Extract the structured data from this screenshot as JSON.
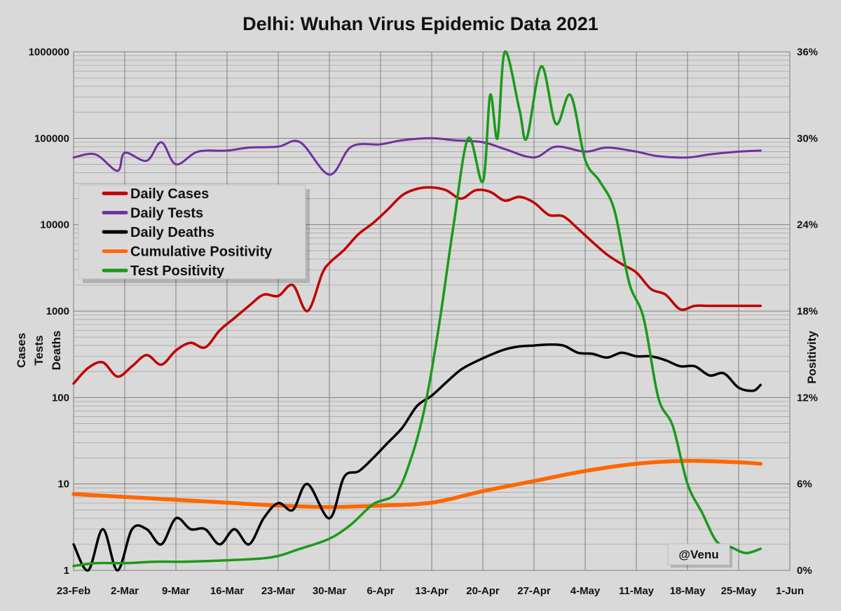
{
  "chart_data": {
    "type": "line",
    "title": "Delhi: Wuhan Virus Epidemic Data 2021",
    "y_left_labels": [
      "Cases",
      "Tests",
      "Deaths"
    ],
    "y_right_label": "Positivity",
    "y_left_scale": "log",
    "y_left_range": [
      1,
      1000000
    ],
    "y_left_ticks": [
      "1",
      "10",
      "100",
      "1000",
      "10000",
      "100000",
      "1000000"
    ],
    "y_right_range": [
      0,
      36
    ],
    "y_right_ticks": [
      "0%",
      "6%",
      "12%",
      "18%",
      "24%",
      "30%",
      "36%"
    ],
    "x_range": [
      "2021-02-23",
      "2021-06-01"
    ],
    "x_ticks": [
      "23-Feb",
      "2-Mar",
      "9-Mar",
      "16-Mar",
      "23-Mar",
      "30-Mar",
      "6-Apr",
      "13-Apr",
      "20-Apr",
      "27-Apr",
      "4-May",
      "11-May",
      "18-May",
      "25-May",
      "1-Jun"
    ],
    "grid": true,
    "legend_position": "upper-left",
    "credit": "@Venu",
    "series": [
      {
        "name": "Daily Cases",
        "color": "#c00000",
        "axis": "left",
        "x": [
          "2021-02-23",
          "2021-02-25",
          "2021-02-27",
          "2021-03-01",
          "2021-03-03",
          "2021-03-05",
          "2021-03-07",
          "2021-03-09",
          "2021-03-11",
          "2021-03-13",
          "2021-03-15",
          "2021-03-17",
          "2021-03-19",
          "2021-03-21",
          "2021-03-23",
          "2021-03-25",
          "2021-03-27",
          "2021-03-29",
          "2021-03-30",
          "2021-04-01",
          "2021-04-03",
          "2021-04-05",
          "2021-04-07",
          "2021-04-09",
          "2021-04-11",
          "2021-04-13",
          "2021-04-15",
          "2021-04-17",
          "2021-04-19",
          "2021-04-21",
          "2021-04-23",
          "2021-04-25",
          "2021-04-27",
          "2021-04-29",
          "2021-05-01",
          "2021-05-03",
          "2021-05-05",
          "2021-05-07",
          "2021-05-09",
          "2021-05-11",
          "2021-05-13",
          "2021-05-15",
          "2021-05-17",
          "2021-05-19",
          "2021-05-21",
          "2021-05-23",
          "2021-05-25",
          "2021-05-27",
          "2021-05-28"
        ],
        "values": [
          145,
          220,
          255,
          175,
          230,
          310,
          240,
          350,
          430,
          380,
          600,
          830,
          1150,
          1550,
          1500,
          2000,
          1000,
          2700,
          3600,
          5100,
          7800,
          10500,
          15000,
          22000,
          26000,
          27000,
          25000,
          20000,
          25000,
          24000,
          19000,
          21000,
          18000,
          13000,
          12500,
          9000,
          6300,
          4500,
          3500,
          2800,
          1800,
          1550,
          1050,
          1150,
          1150,
          1150,
          1150,
          1150,
          1150
        ]
      },
      {
        "name": "Daily Tests",
        "color": "#7030a0",
        "axis": "left",
        "x": [
          "2021-02-23",
          "2021-02-26",
          "2021-03-01",
          "2021-03-02",
          "2021-03-05",
          "2021-03-07",
          "2021-03-09",
          "2021-03-12",
          "2021-03-16",
          "2021-03-19",
          "2021-03-23",
          "2021-03-26",
          "2021-03-30",
          "2021-04-02",
          "2021-04-06",
          "2021-04-09",
          "2021-04-13",
          "2021-04-16",
          "2021-04-20",
          "2021-04-23",
          "2021-04-27",
          "2021-04-30",
          "2021-05-04",
          "2021-05-07",
          "2021-05-11",
          "2021-05-14",
          "2021-05-18",
          "2021-05-21",
          "2021-05-25",
          "2021-05-28"
        ],
        "values": [
          60000,
          65000,
          42000,
          68000,
          55000,
          90000,
          50000,
          70000,
          72000,
          78000,
          80000,
          90000,
          38000,
          80000,
          85000,
          95000,
          100000,
          95000,
          90000,
          75000,
          60000,
          80000,
          70000,
          78000,
          70000,
          62000,
          60000,
          65000,
          70000,
          72000
        ]
      },
      {
        "name": "Daily Deaths",
        "color": "#000000",
        "axis": "left",
        "x": [
          "2021-02-23",
          "2021-02-25",
          "2021-02-27",
          "2021-03-01",
          "2021-03-03",
          "2021-03-05",
          "2021-03-07",
          "2021-03-09",
          "2021-03-11",
          "2021-03-13",
          "2021-03-15",
          "2021-03-17",
          "2021-03-19",
          "2021-03-21",
          "2021-03-23",
          "2021-03-25",
          "2021-03-27",
          "2021-03-30",
          "2021-04-01",
          "2021-04-03",
          "2021-04-05",
          "2021-04-07",
          "2021-04-09",
          "2021-04-11",
          "2021-04-13",
          "2021-04-15",
          "2021-04-17",
          "2021-04-19",
          "2021-04-21",
          "2021-04-23",
          "2021-04-25",
          "2021-04-27",
          "2021-04-29",
          "2021-05-01",
          "2021-05-03",
          "2021-05-05",
          "2021-05-07",
          "2021-05-09",
          "2021-05-11",
          "2021-05-13",
          "2021-05-15",
          "2021-05-17",
          "2021-05-19",
          "2021-05-21",
          "2021-05-23",
          "2021-05-25",
          "2021-05-27",
          "2021-05-28"
        ],
        "values": [
          2,
          1,
          3,
          1,
          3,
          3,
          2,
          4,
          3,
          3,
          2,
          3,
          2,
          4,
          6,
          5,
          10,
          4,
          12,
          14,
          20,
          30,
          45,
          80,
          105,
          150,
          210,
          260,
          310,
          360,
          390,
          400,
          410,
          400,
          330,
          320,
          290,
          330,
          300,
          300,
          270,
          230,
          230,
          180,
          190,
          130,
          120,
          140
        ]
      },
      {
        "name": "Cumulative Positivity",
        "color": "#ff6600",
        "axis": "right",
        "x": [
          "2021-02-23",
          "2021-03-02",
          "2021-03-09",
          "2021-03-16",
          "2021-03-23",
          "2021-03-30",
          "2021-04-06",
          "2021-04-13",
          "2021-04-20",
          "2021-04-27",
          "2021-05-04",
          "2021-05-11",
          "2021-05-18",
          "2021-05-25",
          "2021-05-28"
        ],
        "values": [
          5.3,
          5.1,
          4.9,
          4.7,
          4.5,
          4.4,
          4.5,
          4.7,
          5.5,
          6.2,
          6.9,
          7.4,
          7.6,
          7.5,
          7.4
        ]
      },
      {
        "name": "Test Positivity",
        "color": "#1a9a1a",
        "axis": "right",
        "x": [
          "2021-02-23",
          "2021-02-26",
          "2021-03-02",
          "2021-03-06",
          "2021-03-10",
          "2021-03-16",
          "2021-03-22",
          "2021-03-26",
          "2021-03-30",
          "2021-04-02",
          "2021-04-05",
          "2021-04-08",
          "2021-04-10",
          "2021-04-12",
          "2021-04-14",
          "2021-04-16",
          "2021-04-18",
          "2021-04-20",
          "2021-04-21",
          "2021-04-22",
          "2021-04-23",
          "2021-04-25",
          "2021-04-26",
          "2021-04-28",
          "2021-04-30",
          "2021-05-02",
          "2021-05-04",
          "2021-05-06",
          "2021-05-08",
          "2021-05-10",
          "2021-05-12",
          "2021-05-14",
          "2021-05-16",
          "2021-05-18",
          "2021-05-20",
          "2021-05-22",
          "2021-05-24",
          "2021-05-26",
          "2021-05-28"
        ],
        "values": [
          0.3,
          0.5,
          0.5,
          0.6,
          0.6,
          0.7,
          0.9,
          1.5,
          2.2,
          3.2,
          4.6,
          5.3,
          7.5,
          11.2,
          17.0,
          24.0,
          30.0,
          27.0,
          33.0,
          30.0,
          36.0,
          32.0,
          30.0,
          35.0,
          31.0,
          33.0,
          28.5,
          27.0,
          25.0,
          20.0,
          17.5,
          12.0,
          10.0,
          6.0,
          4.0,
          2.0,
          1.6,
          1.2,
          1.5
        ]
      }
    ]
  }
}
